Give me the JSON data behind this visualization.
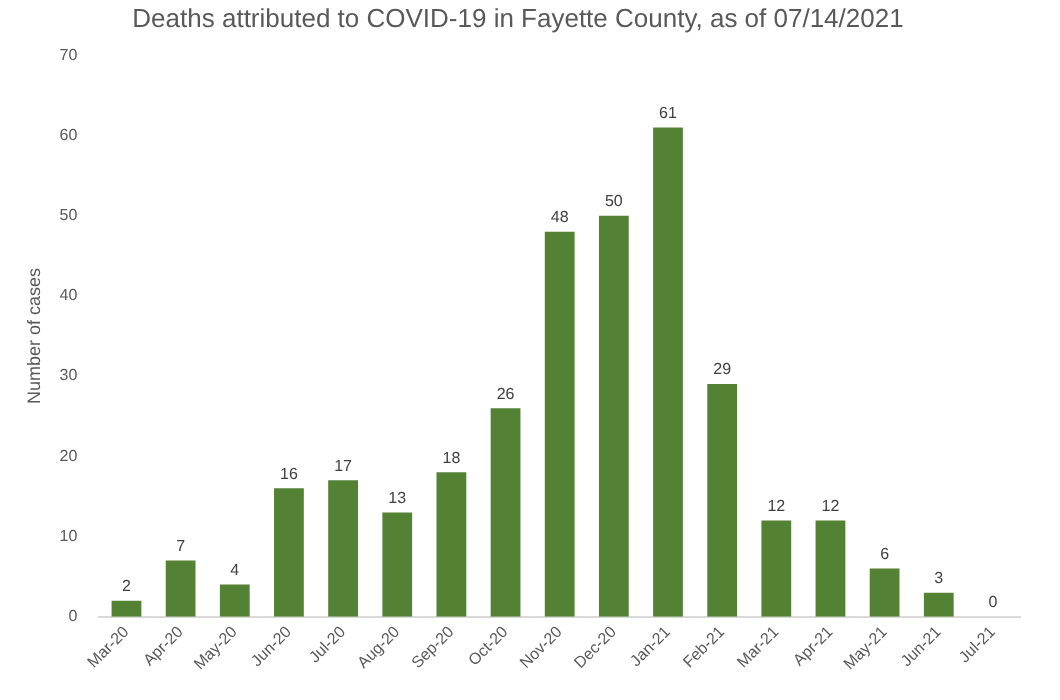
{
  "chart_data": {
    "type": "bar",
    "title": "Deaths attributed to COVID-19 in Fayette County, as of 07/14/2021",
    "ylabel": "Number of cases",
    "categories": [
      "Mar-20",
      "Apr-20",
      "May-20",
      "Jun-20",
      "Jul-20",
      "Aug-20",
      "Sep-20",
      "Oct-20",
      "Nov-20",
      "Dec-20",
      "Jan-21",
      "Feb-21",
      "Mar-21",
      "Apr-21",
      "May-21",
      "Jun-21",
      "Jul-21"
    ],
    "values": [
      2,
      7,
      4,
      16,
      17,
      13,
      18,
      26,
      48,
      50,
      61,
      29,
      12,
      12,
      6,
      3,
      0
    ],
    "color": "#548235",
    "ylim": [
      0,
      70
    ],
    "yticks": [
      0,
      10,
      20,
      30,
      40,
      50,
      60,
      70
    ],
    "grid": false,
    "data_labels": true
  }
}
